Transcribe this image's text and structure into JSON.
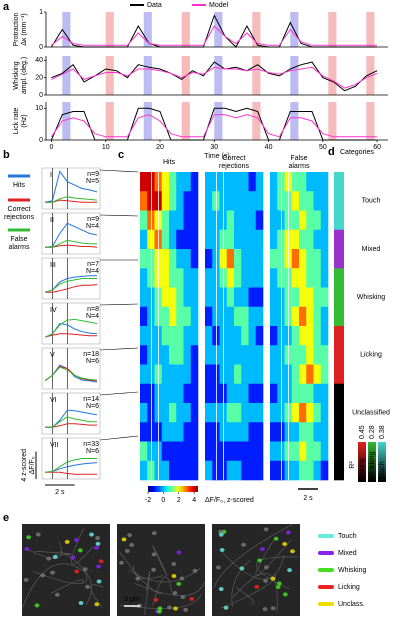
{
  "panel_a": {
    "label": "a",
    "legend": [
      {
        "name": "Data",
        "color": "#000000"
      },
      {
        "name": "Model",
        "color": "#ff33cc"
      }
    ],
    "hit_trials": {
      "color": "#bcbcf2",
      "times": [
        2,
        17,
        30,
        44
      ]
    },
    "cr_trials": {
      "color": "#f6bcbc",
      "times": [
        10,
        24,
        37,
        51,
        58
      ]
    },
    "x": [
      0,
      2,
      4,
      6,
      8,
      10,
      12,
      14,
      16,
      18,
      20,
      22,
      24,
      26,
      28,
      30,
      32,
      34,
      36,
      38,
      40,
      42,
      44,
      46,
      48,
      50,
      52,
      54,
      56,
      58,
      60
    ],
    "xlim": [
      -1,
      62
    ],
    "xticks": [
      0,
      10,
      20,
      30,
      40,
      50,
      60
    ],
    "xlabel": "Time (s)",
    "charts": [
      {
        "ylabel": "Protraction Δκ (mm⁻¹)",
        "ylim": [
          0,
          1
        ],
        "yticks": [
          0,
          1
        ],
        "data": [
          0,
          0.5,
          0.05,
          0,
          0,
          0,
          0,
          0,
          0.6,
          0.1,
          0,
          0,
          0,
          0,
          0,
          0.9,
          0.3,
          0,
          0.6,
          0.05,
          0,
          0,
          0.7,
          0.1,
          0,
          0,
          0,
          0,
          0,
          0,
          0
        ],
        "model": [
          0.05,
          0.3,
          0.1,
          0.05,
          0.05,
          0.05,
          0.05,
          0.05,
          0.4,
          0.1,
          0.05,
          0.05,
          0.05,
          0.05,
          0.05,
          0.6,
          0.3,
          0.1,
          0.4,
          0.1,
          0.05,
          0.05,
          0.5,
          0.15,
          0.05,
          0.05,
          0.05,
          0.05,
          0.05,
          0.05,
          0.05
        ]
      },
      {
        "ylabel": "Whisking ampl. (deg.)",
        "ylim": [
          0,
          45
        ],
        "yticks": [
          0,
          20,
          40
        ],
        "data": [
          20,
          25,
          35,
          15,
          22,
          30,
          28,
          20,
          35,
          32,
          30,
          25,
          18,
          28,
          22,
          38,
          30,
          32,
          28,
          35,
          25,
          22,
          30,
          35,
          38,
          20,
          15,
          5,
          10,
          22,
          28
        ],
        "model": [
          18,
          24,
          30,
          18,
          22,
          26,
          26,
          22,
          30,
          30,
          28,
          25,
          20,
          26,
          24,
          32,
          30,
          30,
          28,
          30,
          26,
          24,
          28,
          30,
          32,
          22,
          16,
          8,
          12,
          20,
          25
        ]
      },
      {
        "ylabel": "Lick rate (Hz)",
        "ylim": [
          0,
          12
        ],
        "yticks": [
          0,
          10
        ],
        "data": [
          0,
          8,
          9,
          9,
          0,
          0,
          0,
          0,
          10,
          10,
          9,
          0,
          0,
          0,
          0,
          10,
          10,
          9,
          10,
          9,
          0,
          0,
          9,
          9,
          9,
          0,
          0,
          0,
          0,
          0,
          0
        ],
        "model": [
          1,
          6,
          7,
          6,
          2,
          1,
          1,
          1,
          7,
          8,
          6,
          2,
          1,
          1,
          1,
          8,
          8,
          7,
          8,
          7,
          2,
          1,
          7,
          7,
          6,
          2,
          1,
          1,
          1,
          1,
          1
        ]
      }
    ]
  },
  "panel_b": {
    "label": "b",
    "legend": [
      {
        "name": "Hits",
        "color": "#2277dd"
      },
      {
        "name": "Correct rejections",
        "color": "#dd2222"
      },
      {
        "name": "False alarms",
        "color": "#33bb33"
      }
    ],
    "x": [
      0,
      0.5,
      1,
      1.5,
      2,
      2.5,
      3,
      3.5
    ],
    "xlim": [
      -0.2,
      3.7
    ],
    "ylim": [
      -1,
      5
    ],
    "scale_y": {
      "value": 4,
      "label": "4 z-scored ΔF/F₀"
    },
    "scale_x": {
      "value": 2,
      "label": "2 s"
    },
    "plots": [
      {
        "name": "I",
        "n": "n=9",
        "N": "N=5",
        "hits": [
          0,
          0.2,
          4.5,
          3,
          2.5,
          2,
          1.8,
          1.5
        ],
        "cr": [
          0,
          0,
          0.3,
          0.2,
          0.1,
          0,
          0,
          0
        ],
        "fa": [
          0,
          0,
          0.5,
          0.8,
          0.6,
          0.5,
          0.4,
          0.3
        ]
      },
      {
        "name": "II",
        "n": "n=9",
        "N": "N=4",
        "hits": [
          0,
          0.1,
          2,
          3.5,
          3,
          2.5,
          2,
          1.8
        ],
        "cr": [
          0,
          0,
          0.2,
          0.3,
          0.2,
          0.1,
          0.1,
          0
        ],
        "fa": [
          0,
          0,
          0.5,
          1,
          0.8,
          0.6,
          0.5,
          0.5
        ]
      },
      {
        "name": "III",
        "n": "n=7",
        "N": "N=4",
        "hits": [
          0,
          0.3,
          1.5,
          2,
          2.2,
          2.3,
          2.4,
          2.4
        ],
        "cr": [
          0,
          0,
          0.2,
          0.5,
          0.8,
          1,
          1,
          1.1
        ],
        "fa": [
          0,
          0.3,
          1.2,
          1.6,
          1.8,
          2,
          2,
          2
        ]
      },
      {
        "name": "IV",
        "n": "n=8",
        "N": "N=4",
        "hits": [
          0,
          0.5,
          2,
          1.8,
          1.2,
          0.8,
          0.6,
          0.5
        ],
        "cr": [
          0,
          0.3,
          0.5,
          0.5,
          0.4,
          0.3,
          0.2,
          0.2
        ],
        "fa": [
          0,
          0.5,
          1.8,
          2.5,
          2.6,
          2.4,
          2.2,
          2
        ]
      },
      {
        "name": "V",
        "n": "n=18",
        "N": "N=6",
        "hits": [
          0.2,
          1,
          2.5,
          2,
          0.8,
          0.3,
          0.2,
          0
        ],
        "cr": [
          0.2,
          1,
          2.3,
          2,
          1,
          0.5,
          0.3,
          0.2
        ],
        "fa": [
          0.2,
          1,
          2.2,
          1.8,
          1,
          0.6,
          0.4,
          0.3
        ]
      },
      {
        "name": "VI",
        "n": "n=14",
        "N": "N=6",
        "hits": [
          0,
          0,
          1,
          2.5,
          2.4,
          2.2,
          2,
          1.8
        ],
        "cr": [
          0,
          0,
          0.2,
          0.5,
          0.5,
          0.4,
          0.3,
          0.3
        ],
        "fa": [
          0,
          0,
          0.8,
          1.5,
          1.2,
          1,
          0.8,
          0.8
        ]
      },
      {
        "name": "VII",
        "n": "n=33",
        "N": "N=6",
        "hits": [
          0,
          0.1,
          0.5,
          0.8,
          1,
          1.2,
          1.3,
          1.4
        ],
        "cr": [
          0,
          0,
          0,
          -0.2,
          -0.3,
          -0.3,
          -0.3,
          -0.3
        ],
        "fa": [
          0,
          0.1,
          0.8,
          1.5,
          1.8,
          2,
          2,
          2
        ]
      }
    ]
  },
  "panel_c": {
    "label": "c",
    "clim": [
      -2,
      4.5
    ],
    "colorbar": {
      "ticks": [
        -2,
        0,
        2,
        4
      ],
      "label": "ΔF/F₀, z-scored"
    },
    "scale": "2 s",
    "blocks": [
      {
        "title": "Hits",
        "color": "#2277dd",
        "values": [
          [
            4,
            4,
            3,
            2,
            1,
            0,
            0,
            -1
          ],
          [
            3,
            4,
            4,
            2,
            1,
            0,
            -1,
            -1
          ],
          [
            1,
            3,
            2,
            1,
            0,
            0,
            -1,
            -1
          ],
          [
            0,
            2,
            3,
            1,
            0,
            -1,
            -1,
            -1
          ],
          [
            1,
            1,
            2,
            2,
            1,
            0,
            0,
            -1
          ],
          [
            0,
            1,
            2,
            2,
            1,
            1,
            0,
            0
          ],
          [
            0,
            0,
            1,
            2,
            2,
            1,
            0,
            0
          ],
          [
            -1,
            0,
            1,
            1,
            2,
            1,
            1,
            0
          ],
          [
            0,
            0,
            0,
            1,
            1,
            1,
            0,
            0
          ],
          [
            -1,
            0,
            0,
            0,
            1,
            1,
            0,
            -1
          ],
          [
            0,
            0,
            1,
            0,
            0,
            0,
            0,
            -1
          ],
          [
            -1,
            -1,
            0,
            0,
            0,
            0,
            -1,
            -1
          ],
          [
            0,
            -1,
            0,
            0,
            1,
            0,
            0,
            -1
          ],
          [
            -1,
            -1,
            -1,
            0,
            0,
            0,
            -1,
            -1
          ],
          [
            1,
            0,
            0,
            -1,
            -1,
            -1,
            -1,
            -1
          ],
          [
            0,
            1,
            0,
            0,
            -1,
            -1,
            -1,
            -1
          ]
        ]
      },
      {
        "title": "Correct rejections",
        "color": "#dd2222",
        "values": [
          [
            0,
            0,
            0,
            0,
            0,
            0,
            -1,
            0
          ],
          [
            0,
            1,
            0,
            0,
            0,
            0,
            0,
            0
          ],
          [
            0,
            0,
            0,
            1,
            0,
            0,
            0,
            -1
          ],
          [
            0,
            0,
            1,
            1,
            0,
            0,
            0,
            0
          ],
          [
            -1,
            0,
            2,
            3,
            1,
            0,
            0,
            0
          ],
          [
            0,
            0,
            1,
            2,
            1,
            0,
            0,
            0
          ],
          [
            0,
            0,
            0,
            1,
            0,
            0,
            -1,
            -1
          ],
          [
            -1,
            0,
            0,
            0,
            1,
            1,
            0,
            0
          ],
          [
            0,
            -1,
            0,
            0,
            0,
            1,
            0,
            -1
          ],
          [
            0,
            0,
            0,
            0,
            0,
            0,
            0,
            0
          ],
          [
            -1,
            -1,
            0,
            0,
            1,
            0,
            0,
            0
          ],
          [
            -1,
            -1,
            -1,
            0,
            0,
            0,
            -1,
            -1
          ],
          [
            0,
            0,
            0,
            1,
            1,
            0,
            0,
            0
          ],
          [
            -1,
            -1,
            0,
            0,
            0,
            0,
            -1,
            -1
          ],
          [
            -1,
            -1,
            -1,
            -1,
            -1,
            -1,
            -1,
            -1
          ],
          [
            0,
            -1,
            -1,
            0,
            0,
            -1,
            -1,
            -1
          ]
        ]
      },
      {
        "title": "False alarms",
        "color": "#33bb33",
        "values": [
          [
            0,
            1,
            2,
            1,
            1,
            0,
            0,
            0
          ],
          [
            0,
            1,
            1,
            2,
            1,
            1,
            0,
            0
          ],
          [
            0,
            0,
            1,
            1,
            2,
            1,
            1,
            0
          ],
          [
            0,
            1,
            2,
            2,
            1,
            1,
            0,
            0
          ],
          [
            1,
            1,
            2,
            3,
            2,
            1,
            1,
            0
          ],
          [
            0,
            1,
            1,
            2,
            2,
            1,
            1,
            0
          ],
          [
            0,
            0,
            1,
            1,
            2,
            2,
            1,
            1
          ],
          [
            0,
            0,
            1,
            2,
            3,
            2,
            1,
            0
          ],
          [
            -1,
            0,
            0,
            1,
            2,
            2,
            1,
            0
          ],
          [
            0,
            0,
            1,
            1,
            1,
            2,
            1,
            1
          ],
          [
            0,
            0,
            0,
            1,
            2,
            3,
            2,
            1
          ],
          [
            -1,
            0,
            0,
            1,
            1,
            1,
            0,
            0
          ],
          [
            0,
            0,
            1,
            2,
            3,
            2,
            1,
            0
          ],
          [
            -1,
            -1,
            0,
            0,
            1,
            1,
            0,
            0
          ],
          [
            0,
            0,
            1,
            1,
            2,
            1,
            1,
            0
          ],
          [
            -1,
            -1,
            0,
            0,
            1,
            1,
            0,
            -1
          ]
        ]
      }
    ]
  },
  "panel_d": {
    "label": "d",
    "title": "Categories",
    "categories": [
      {
        "name": "Touch",
        "color": "#44d8cc"
      },
      {
        "name": "Mixed",
        "color": "#9933cc"
      },
      {
        "name": "Whisking",
        "color": "#33bb33"
      },
      {
        "name": "Licking",
        "color": "#dd2222"
      },
      {
        "name": "Unclassified",
        "color": "#000000"
      }
    ],
    "rows": [
      "Touch",
      "Touch",
      "Touch",
      "Mixed",
      "Mixed",
      "Whisking",
      "Whisking",
      "Whisking",
      "Licking",
      "Licking",
      "Licking",
      "Unclassified",
      "Unclassified",
      "Unclassified",
      "Unclassified",
      "Unclassified"
    ],
    "r2": {
      "label": "R²",
      "bars": [
        {
          "name": "Licking",
          "max": 0.45,
          "color": "#dd2222"
        },
        {
          "name": "Whisking",
          "max": 0.28,
          "color": "#33bb33"
        },
        {
          "name": "Touch",
          "max": 0.38,
          "color": "#44d8cc"
        }
      ]
    }
  },
  "panel_e": {
    "label": "e",
    "legend": [
      {
        "name": "Touch",
        "color": "#66e8e0"
      },
      {
        "name": "Mixed",
        "color": "#8822ee"
      },
      {
        "name": "Whisking",
        "color": "#44dd22"
      },
      {
        "name": "Licking",
        "color": "#ee2222"
      },
      {
        "name": "Unclass.",
        "color": "#eedd00"
      }
    ],
    "scale": "5 μm"
  }
}
